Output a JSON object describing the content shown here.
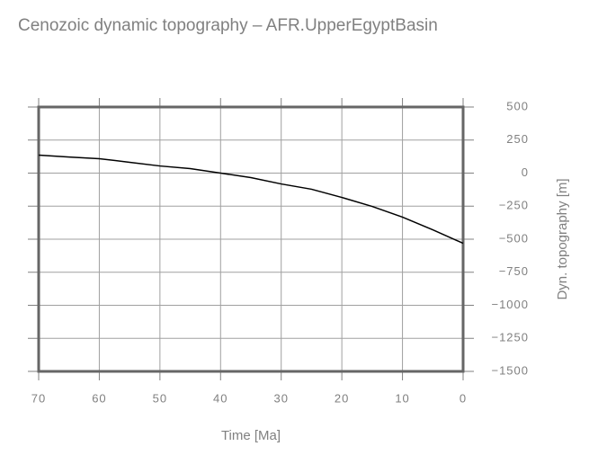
{
  "chart_data": {
    "type": "line",
    "title": "Cenozoic dynamic topography – AFR.UpperEgyptBasin",
    "x_label": "Time [Ma]",
    "y_label": "Dyn. topography [m]",
    "x": [
      70,
      65,
      60,
      55,
      50,
      45,
      40,
      35,
      30,
      25,
      20,
      15,
      10,
      5,
      0
    ],
    "series": [
      {
        "name": "AFR.UpperEgyptBasin",
        "color": "#000000",
        "values": [
          136,
          122,
          109,
          82,
          54,
          34,
          0,
          -34,
          -82,
          -122,
          -184,
          -252,
          -333,
          -429,
          -531
        ]
      }
    ],
    "xlim": [
      70,
      0
    ],
    "xticks": [
      70,
      60,
      50,
      40,
      30,
      20,
      10,
      0
    ],
    "ylim": [
      -1500,
      500
    ],
    "yticks": [
      {
        "value": -1500,
        "label": "−1500"
      },
      {
        "value": -1250,
        "label": "−1250"
      },
      {
        "value": -1000,
        "label": "−1000"
      },
      {
        "value": -750,
        "label": "−750"
      },
      {
        "value": -500,
        "label": "−500"
      },
      {
        "value": -250,
        "label": "−250"
      },
      0,
      250,
      500
    ],
    "grid": true
  }
}
